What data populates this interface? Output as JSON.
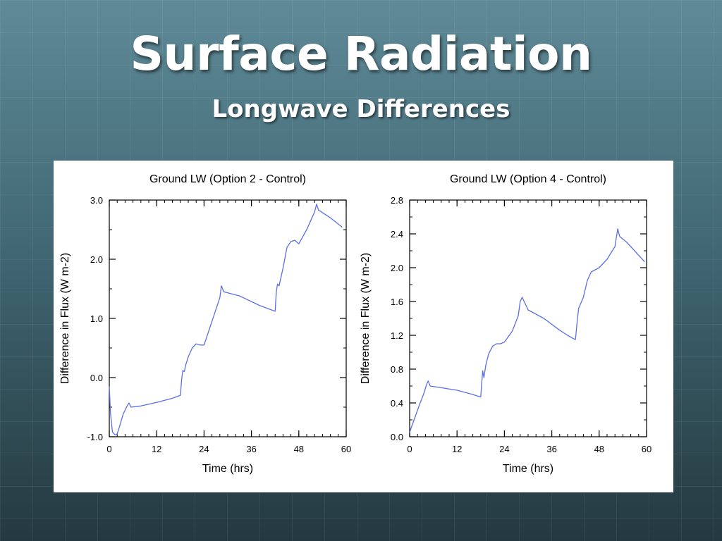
{
  "slide": {
    "title": "Surface Radiation",
    "subtitle": "Longwave Differences"
  },
  "colors": {
    "line": "#5b6ee8",
    "axes": "#000000",
    "panel": "#ffffff"
  },
  "chart_data": [
    {
      "type": "line",
      "title": "Ground LW (Option 2 - Control)",
      "xlabel": "Time (hrs)",
      "ylabel": "Difference in Flux (W m-2)",
      "xlim": [
        0,
        60
      ],
      "ylim": [
        -1.0,
        3.0
      ],
      "xticks": [
        0,
        12,
        24,
        36,
        48,
        60
      ],
      "xtick_labels": [
        "0",
        "12",
        "24",
        "36",
        "48",
        "60"
      ],
      "yticks": [
        -1.0,
        0.0,
        1.0,
        2.0,
        3.0
      ],
      "ytick_labels": [
        "-1.0",
        "0.0",
        "1.0",
        "2.0",
        "3.0"
      ],
      "x": [
        0,
        0.3,
        0.8,
        1.5,
        2.0,
        2.5,
        3.5,
        4.5,
        5.0,
        5.5,
        8,
        12,
        16,
        18,
        18.3,
        18.6,
        19,
        19.4,
        20,
        21,
        22,
        23,
        24,
        26,
        28,
        28.4,
        29,
        33,
        38,
        42,
        42.3,
        42.6,
        43,
        44,
        45,
        46,
        47,
        48,
        50,
        52,
        52.5,
        53,
        56,
        59
      ],
      "y": [
        -0.15,
        -0.6,
        -0.92,
        -0.97,
        -0.95,
        -0.85,
        -0.62,
        -0.48,
        -0.43,
        -0.5,
        -0.48,
        -0.42,
        -0.35,
        -0.3,
        -0.05,
        0.12,
        0.1,
        0.22,
        0.35,
        0.5,
        0.57,
        0.55,
        0.55,
        0.95,
        1.35,
        1.55,
        1.45,
        1.38,
        1.22,
        1.12,
        1.45,
        1.58,
        1.55,
        1.85,
        2.2,
        2.3,
        2.32,
        2.26,
        2.5,
        2.8,
        2.93,
        2.83,
        2.7,
        2.54
      ]
    },
    {
      "type": "line",
      "title": "Ground LW (Option 4 - Control)",
      "xlabel": "Time (hrs)",
      "ylabel": "Difference in Flux (W m-2)",
      "xlim": [
        0,
        60
      ],
      "ylim": [
        0.0,
        2.8
      ],
      "xticks": [
        0,
        12,
        24,
        36,
        48,
        60
      ],
      "xtick_labels": [
        "0",
        "12",
        "24",
        "36",
        "48",
        "60"
      ],
      "yticks": [
        0.0,
        0.4,
        0.8,
        1.2,
        1.6,
        2.0,
        2.4,
        2.8
      ],
      "ytick_labels": [
        "0.0",
        "0.4",
        "0.8",
        "1.2",
        "1.6",
        "2.0",
        "2.4",
        "2.8"
      ],
      "x": [
        0,
        0.5,
        1.5,
        2.5,
        3.5,
        4.3,
        4.7,
        5.2,
        8,
        12,
        16,
        18,
        18.2,
        18.5,
        18.8,
        19.3,
        20,
        21,
        22,
        23,
        24,
        26,
        27.5,
        28,
        28.5,
        30,
        34,
        38,
        40,
        41.5,
        42,
        42.4,
        42.8,
        44,
        45,
        46,
        48,
        50,
        52,
        52.7,
        53.2,
        55,
        59.5
      ],
      "y": [
        0.05,
        0.12,
        0.25,
        0.38,
        0.5,
        0.62,
        0.66,
        0.6,
        0.58,
        0.55,
        0.5,
        0.47,
        0.6,
        0.78,
        0.7,
        0.85,
        0.98,
        1.07,
        1.1,
        1.1,
        1.12,
        1.25,
        1.43,
        1.6,
        1.65,
        1.5,
        1.4,
        1.26,
        1.2,
        1.16,
        1.15,
        1.35,
        1.52,
        1.65,
        1.85,
        1.95,
        2.0,
        2.1,
        2.25,
        2.46,
        2.37,
        2.3,
        2.07
      ]
    }
  ]
}
